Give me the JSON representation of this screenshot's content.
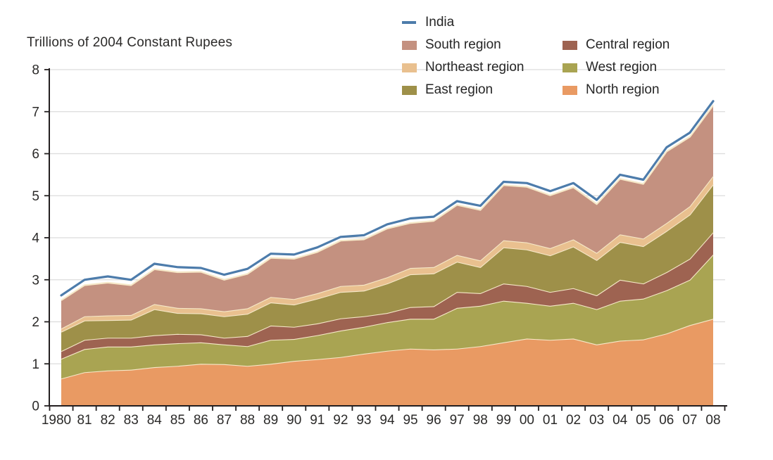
{
  "title": "Trillions of 2004 Constant Rupees",
  "colors": {
    "india_line": "#4d7cab",
    "south": "#c49180",
    "northeast": "#e9c08f",
    "east": "#9e9049",
    "central": "#9e6351",
    "west": "#a9a452",
    "north": "#e99a63",
    "band_edge": "#f6e8c8",
    "grid": "#dcdcdc",
    "axis": "#231f20",
    "text": "#2b2a29"
  },
  "legend": {
    "india": {
      "label": "India",
      "color": "#4d7cab"
    },
    "columns": [
      {
        "items": [
          {
            "label": "South region",
            "color": "#c49180"
          },
          {
            "label": "Northeast region",
            "color": "#e9c08f"
          },
          {
            "label": "East region",
            "color": "#9e9049"
          }
        ]
      },
      {
        "items": [
          {
            "label": "Central region",
            "color": "#9e6351"
          },
          {
            "label": "West region",
            "color": "#a9a452"
          },
          {
            "label": "North region",
            "color": "#e99a63"
          }
        ]
      }
    ]
  },
  "chart_data": {
    "type": "area",
    "stacked": true,
    "title": "Trillions of 2004 Constant Rupees",
    "xlabel": "",
    "ylabel": "Trillions of 2004 Constant Rupees",
    "ylim": [
      0,
      8
    ],
    "yticks": [
      0,
      1,
      2,
      3,
      4,
      5,
      6,
      7,
      8
    ],
    "grid": true,
    "legend_position": "top-right",
    "x_labels": [
      "1980",
      "81",
      "82",
      "83",
      "84",
      "85",
      "86",
      "87",
      "88",
      "89",
      "90",
      "91",
      "92",
      "93",
      "94",
      "95",
      "96",
      "97",
      "98",
      "99",
      "00",
      "01",
      "02",
      "03",
      "04",
      "05",
      "06",
      "07",
      "08"
    ],
    "series": [
      {
        "name": "North region",
        "color": "#e99a63",
        "values": [
          0.65,
          0.8,
          0.84,
          0.86,
          0.92,
          0.95,
          1.0,
          0.99,
          0.95,
          1.0,
          1.07,
          1.11,
          1.16,
          1.24,
          1.31,
          1.36,
          1.34,
          1.36,
          1.42,
          1.51,
          1.6,
          1.57,
          1.6,
          1.46,
          1.55,
          1.58,
          1.72,
          1.92,
          2.07
        ]
      },
      {
        "name": "West region",
        "color": "#a9a452",
        "values": [
          0.47,
          0.55,
          0.57,
          0.55,
          0.54,
          0.54,
          0.51,
          0.47,
          0.47,
          0.57,
          0.52,
          0.57,
          0.63,
          0.64,
          0.68,
          0.71,
          0.73,
          0.97,
          0.96,
          0.99,
          0.85,
          0.81,
          0.85,
          0.84,
          0.95,
          0.97,
          1.03,
          1.08,
          1.53
        ]
      },
      {
        "name": "Central region",
        "color": "#9e6351",
        "values": [
          0.18,
          0.22,
          0.21,
          0.21,
          0.22,
          0.22,
          0.19,
          0.16,
          0.24,
          0.34,
          0.29,
          0.28,
          0.29,
          0.25,
          0.22,
          0.28,
          0.3,
          0.38,
          0.3,
          0.41,
          0.4,
          0.33,
          0.35,
          0.33,
          0.5,
          0.36,
          0.43,
          0.5,
          0.53
        ]
      },
      {
        "name": "East region",
        "color": "#9e9049",
        "values": [
          0.46,
          0.46,
          0.42,
          0.43,
          0.62,
          0.5,
          0.5,
          0.51,
          0.53,
          0.55,
          0.53,
          0.59,
          0.63,
          0.61,
          0.7,
          0.78,
          0.78,
          0.72,
          0.62,
          0.86,
          0.87,
          0.87,
          0.99,
          0.84,
          0.9,
          0.89,
          0.98,
          1.05,
          1.14
        ]
      },
      {
        "name": "Northeast region",
        "color": "#e9c08f",
        "values": [
          0.08,
          0.1,
          0.11,
          0.11,
          0.12,
          0.12,
          0.12,
          0.12,
          0.13,
          0.13,
          0.13,
          0.13,
          0.14,
          0.14,
          0.15,
          0.15,
          0.15,
          0.16,
          0.16,
          0.17,
          0.17,
          0.17,
          0.17,
          0.17,
          0.18,
          0.18,
          0.19,
          0.2,
          0.2
        ]
      },
      {
        "name": "South region",
        "color": "#c49180",
        "values": [
          0.67,
          0.74,
          0.78,
          0.71,
          0.83,
          0.85,
          0.87,
          0.75,
          0.82,
          0.93,
          0.96,
          0.98,
          1.08,
          1.08,
          1.16,
          1.07,
          1.1,
          1.19,
          1.2,
          1.31,
          1.32,
          1.26,
          1.24,
          1.16,
          1.32,
          1.3,
          1.7,
          1.65,
          1.68
        ]
      }
    ],
    "line_series": {
      "name": "India",
      "color": "#4d7cab",
      "values": [
        2.63,
        3.0,
        3.08,
        3.0,
        3.38,
        3.3,
        3.28,
        3.12,
        3.26,
        3.62,
        3.6,
        3.77,
        4.02,
        4.06,
        4.32,
        4.46,
        4.5,
        4.87,
        4.76,
        5.33,
        5.3,
        5.11,
        5.3,
        4.9,
        5.5,
        5.38,
        6.15,
        6.5,
        7.25
      ]
    }
  }
}
